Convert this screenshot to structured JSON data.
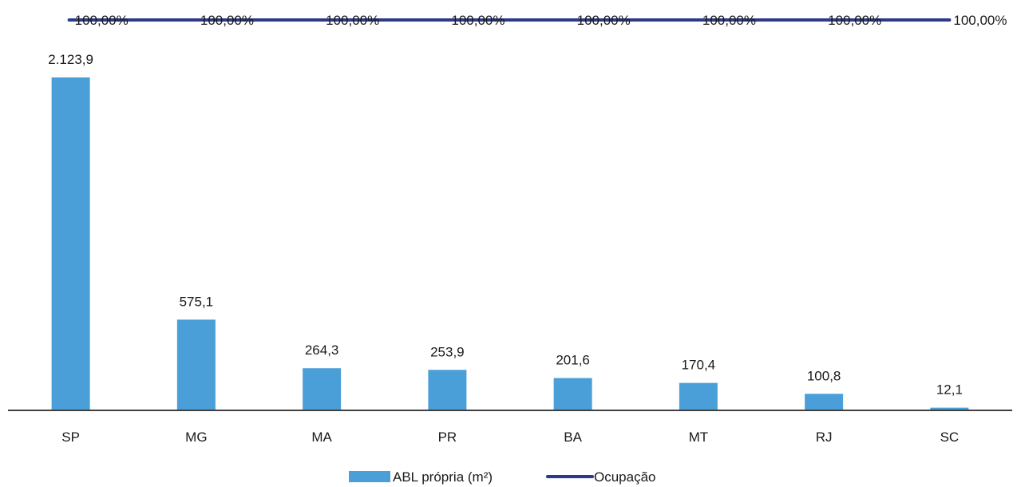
{
  "chart_data": {
    "type": "bar",
    "categories": [
      "SP",
      "MG",
      "MA",
      "PR",
      "BA",
      "MT",
      "RJ",
      "SC"
    ],
    "series": [
      {
        "name": "ABL própria (m²)",
        "type": "bar",
        "color": "#4a9fd8",
        "values": [
          2123.9,
          575.1,
          264.3,
          253.9,
          201.6,
          170.4,
          100.8,
          12.1
        ],
        "labels": [
          "2.123,9",
          "575,1",
          "264,3",
          "253,9",
          "201,6",
          "170,4",
          "100,8",
          "12,1"
        ]
      },
      {
        "name": "Ocupação",
        "type": "line",
        "color": "#2e3a87",
        "values": [
          100,
          100,
          100,
          100,
          100,
          100,
          100,
          100
        ],
        "labels": [
          "100,00%",
          "100,00%",
          "100,00%",
          "100,00%",
          "100,00%",
          "100,00%",
          "100,00%",
          "100,00%"
        ]
      }
    ],
    "ylim": [
      0,
      2123.9
    ],
    "grid": false,
    "legend": "bottom-center"
  }
}
